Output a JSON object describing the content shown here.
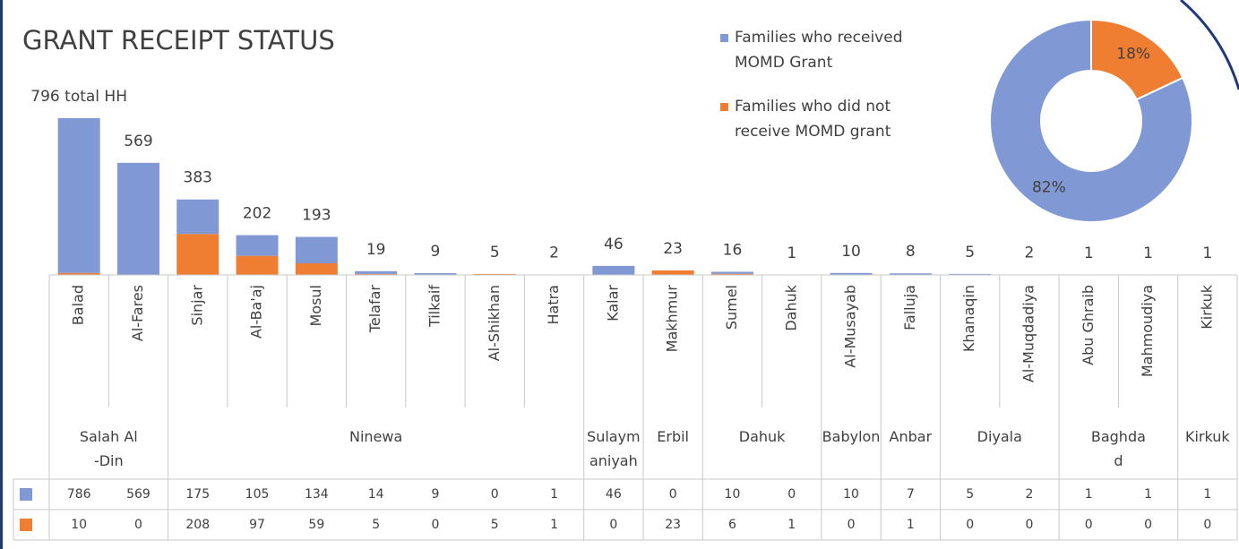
{
  "chart_data": [
    {
      "type": "bar",
      "stacked": true,
      "title": "GRANT RECEIPT STATUS",
      "categories": [
        "Balad",
        "Al-Fares",
        "Sinjar",
        "Al-Ba'aj",
        "Mosul",
        "Telafar",
        "Tilkaif",
        "Al-Shikhan",
        "Hatra",
        "Kalar",
        "Makhmur",
        "Sumel",
        "Dahuk",
        "Al-Musayab",
        "Falluja",
        "Khanaqin",
        "Al-Muqdadiya",
        "Abu Ghraib",
        "Mahmoudiya",
        "Kirkuk"
      ],
      "groups": [
        {
          "name": "Salah Al-Din",
          "size": 2
        },
        {
          "name": "Ninewa",
          "size": 7
        },
        {
          "name": "Sulaymaniyah",
          "size": 1
        },
        {
          "name": "Erbil",
          "size": 1
        },
        {
          "name": "Dahuk",
          "size": 2
        },
        {
          "name": "Babylon",
          "size": 1
        },
        {
          "name": "Anbar",
          "size": 1
        },
        {
          "name": "Diyala",
          "size": 2
        },
        {
          "name": "Baghdad",
          "size": 2
        },
        {
          "name": "Kirkuk",
          "size": 1
        }
      ],
      "series": [
        {
          "color": "#8098d4",
          "values": [
            786,
            569,
            175,
            105,
            134,
            14,
            9,
            0,
            1,
            46,
            0,
            10,
            0,
            10,
            7,
            5,
            2,
            1,
            1,
            1
          ]
        },
        {
          "color": "#ef7d32",
          "values": [
            10,
            0,
            208,
            97,
            59,
            5,
            0,
            5,
            1,
            0,
            23,
            6,
            1,
            0,
            1,
            0,
            0,
            0,
            0,
            0
          ]
        }
      ],
      "total_labels": [
        "796 total HH",
        "569",
        "383",
        "202",
        "193",
        "19",
        "9",
        "5",
        "2",
        "46",
        "23",
        "16",
        "1",
        "10",
        "8",
        "5",
        "2",
        "1",
        "1",
        "1"
      ],
      "ylim": [
        0,
        800
      ]
    },
    {
      "type": "pie",
      "donut": true,
      "categories": [
        "Families who received MOMD Grant",
        "Families who did not receive MOMD grant"
      ],
      "values": [
        82,
        18
      ],
      "value_labels": [
        "82%",
        "18%"
      ],
      "colors": [
        "#8098d4",
        "#ef7d32"
      ]
    }
  ]
}
